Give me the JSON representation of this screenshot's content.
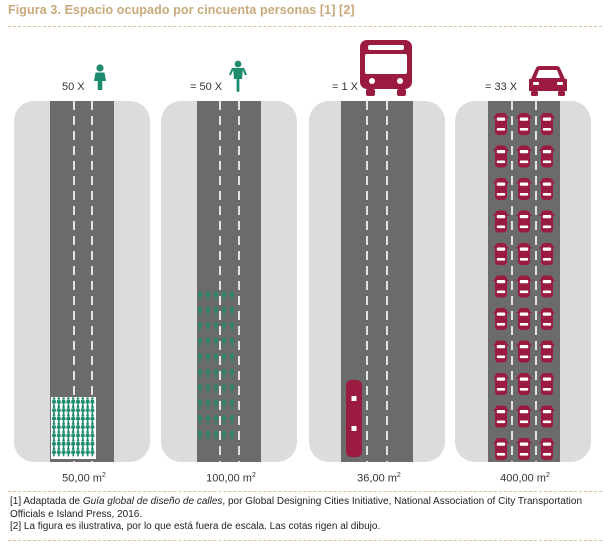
{
  "figure": {
    "title": "Figura 3. Espacio ocupado por cincuenta personas [1] [2]"
  },
  "panels": [
    {
      "id": "pedestrians",
      "count_label": "50 X",
      "area_value": "50,00 m",
      "area_unit_exp": "2",
      "icon": "person-icon"
    },
    {
      "id": "cyclists",
      "count_label": "= 50 X",
      "area_value": "100,00 m",
      "area_unit_exp": "2",
      "icon": "bicycle-icon"
    },
    {
      "id": "bus",
      "count_label": "= 1 X",
      "area_value": "36,00 m",
      "area_unit_exp": "2",
      "icon": "bus-icon"
    },
    {
      "id": "cars",
      "count_label": "= 33 X",
      "area_value": "400,00 m",
      "area_unit_exp": "2",
      "icon": "car-icon"
    }
  ],
  "notes": {
    "note1_prefix": "[1] Adaptada de ",
    "note1_title": "Guía global de diseño de calles",
    "note1_suffix": ", por Global Designing Cities Initiative, National Association of City Transportation Officials e Island Press, 2016.",
    "note2": "[2] La figura es ilustrativa, por lo que está fuera de escala. Las cotas rigen al dibujo."
  },
  "colors": {
    "title": "#c9a97a",
    "road": "#6b6b6b",
    "sidewalk": "#dcdcdc",
    "accent_green": "#1e8a6e",
    "accent_maroon": "#9b1b40"
  }
}
